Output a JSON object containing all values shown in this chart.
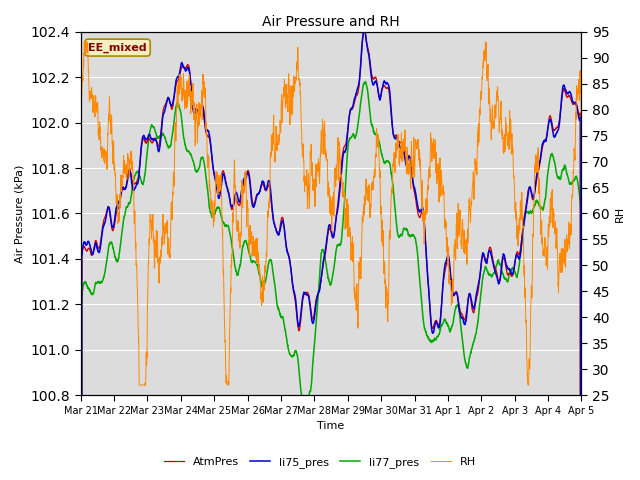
{
  "title": "Air Pressure and RH",
  "xlabel": "Time",
  "ylabel_left": "Air Pressure (kPa)",
  "ylabel_right": "RH",
  "annotation": "EE_mixed",
  "ylim_left": [
    100.8,
    102.4
  ],
  "ylim_right": [
    25,
    95
  ],
  "yticks_left": [
    100.8,
    101.0,
    101.2,
    101.4,
    101.6,
    101.8,
    102.0,
    102.2,
    102.4
  ],
  "yticks_right": [
    25,
    30,
    35,
    40,
    45,
    50,
    55,
    60,
    65,
    70,
    75,
    80,
    85,
    90,
    95
  ],
  "colors": {
    "AtmPres": "#cc0000",
    "li75_pres": "#0000dd",
    "li77_pres": "#00aa00",
    "RH": "#ff8800",
    "background": "#dcdcdc",
    "grid": "#ffffff"
  },
  "legend_entries": [
    "AtmPres",
    "li75_pres",
    "li77_pres",
    "RH"
  ],
  "xtick_labels": [
    "Mar 21",
    "Mar 22",
    "Mar 23",
    "Mar 24",
    "Mar 25",
    "Mar 26",
    "Mar 27",
    "Mar 28",
    "Mar 29",
    "Mar 30",
    "Mar 31",
    "Apr 1",
    "Apr 2",
    "Apr 3",
    "Apr 4",
    "Apr 5"
  ],
  "xtick_positions": [
    0,
    1,
    2,
    3,
    4,
    5,
    6,
    7,
    8,
    9,
    10,
    11,
    12,
    13,
    14,
    15
  ],
  "n_points": 3000,
  "title_fontsize": 10,
  "axis_label_fontsize": 8,
  "tick_fontsize": 7,
  "legend_fontsize": 8,
  "annotation_fontsize": 8
}
